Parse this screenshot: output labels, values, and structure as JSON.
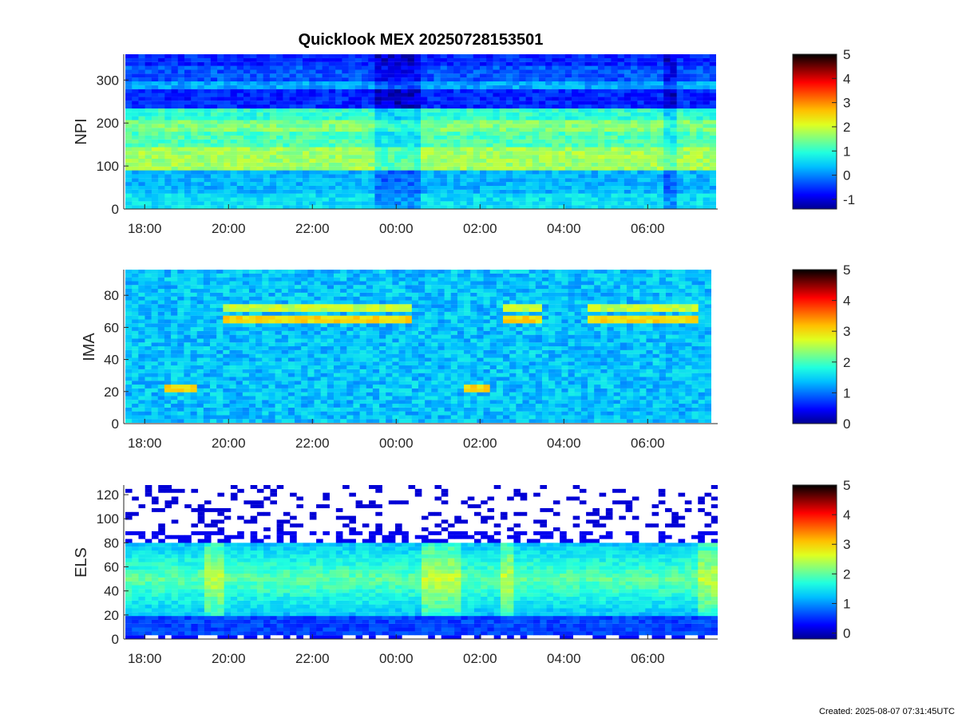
{
  "title": "Quicklook MEX 20250728153501",
  "footer": "Created: 2025-08-07 07:31:45UTC",
  "colormap": [
    "#00008f",
    "#0000ff",
    "#0060ff",
    "#00c0ff",
    "#20ffdf",
    "#80ff80",
    "#dfff20",
    "#ffc000",
    "#ff6000",
    "#ff0000",
    "#800000",
    "#000000"
  ],
  "chart_data": [
    {
      "type": "heatmap",
      "ylabel": "NPI",
      "x_tick_labels": [
        "18:00",
        "20:00",
        "22:00",
        "00:00",
        "02:00",
        "04:00",
        "06:00"
      ],
      "y_ticks": [
        0,
        100,
        200,
        300
      ],
      "ylim": [
        0,
        360
      ],
      "colorbar_ticks": [
        -1,
        0,
        1,
        2,
        3,
        4,
        5
      ],
      "colorbar_range": [
        -1.4,
        5
      ],
      "bands": [
        {
          "y": [
            0,
            40
          ],
          "level": 0.6
        },
        {
          "y": [
            40,
            90
          ],
          "level": 0.3
        },
        {
          "y": [
            90,
            140
          ],
          "level": 1.7
        },
        {
          "y": [
            140,
            180
          ],
          "level": 1.2
        },
        {
          "y": [
            180,
            210
          ],
          "level": 1.5
        },
        {
          "y": [
            210,
            235
          ],
          "level": 1.0
        },
        {
          "y": [
            235,
            280
          ],
          "level": -0.6
        },
        {
          "y": [
            280,
            300
          ],
          "level": 0.2
        },
        {
          "y": [
            300,
            330
          ],
          "level": -0.3
        },
        {
          "y": [
            330,
            360
          ],
          "level": -0.6
        }
      ]
    },
    {
      "type": "heatmap",
      "ylabel": "IMA",
      "x_tick_labels": [
        "18:00",
        "20:00",
        "22:00",
        "00:00",
        "02:00",
        "04:00",
        "06:00"
      ],
      "y_ticks": [
        0,
        20,
        40,
        60,
        80
      ],
      "ylim": [
        0,
        96
      ],
      "colorbar_ticks": [
        0,
        1,
        2,
        3,
        4,
        5
      ],
      "colorbar_range": [
        0,
        5
      ],
      "features": [
        {
          "name": "low-energy ions",
          "y_center": 22,
          "time_spans": [
            [
              "18:40",
              "19:20"
            ],
            [
              "01:40",
              "02:20"
            ]
          ],
          "level": 3.0
        },
        {
          "name": "upper line",
          "y_center": 72,
          "time_spans": [
            [
              "20:00",
              "00:30"
            ],
            [
              "02:40",
              "03:30"
            ],
            [
              "04:40",
              "07:20"
            ]
          ],
          "level": 2.6
        },
        {
          "name": "lower line",
          "y_center": 64,
          "time_spans": [
            [
              "20:00",
              "00:30"
            ],
            [
              "02:40",
              "03:30"
            ],
            [
              "04:40",
              "07:20"
            ]
          ],
          "level": 3.0
        }
      ]
    },
    {
      "type": "heatmap",
      "ylabel": "ELS",
      "x_tick_labels": [
        "18:00",
        "20:00",
        "22:00",
        "00:00",
        "02:00",
        "04:00",
        "06:00"
      ],
      "y_ticks": [
        0,
        20,
        40,
        60,
        80,
        100,
        120
      ],
      "ylim": [
        0,
        128
      ],
      "colorbar_ticks": [
        0,
        1,
        2,
        3,
        4,
        5
      ],
      "colorbar_range": [
        -0.2,
        5
      ],
      "features": [
        {
          "name": "main band",
          "y_range": [
            18,
            80
          ],
          "peak_y": 50,
          "level": 2.0
        },
        {
          "name": "sheath bursts",
          "time_spans": [
            [
              "19:30",
              "20:00"
            ],
            [
              "00:40",
              "01:30"
            ],
            [
              "02:30",
              "02:50"
            ],
            [
              "07:10",
              "07:40"
            ]
          ],
          "level": 2.6
        }
      ]
    }
  ]
}
